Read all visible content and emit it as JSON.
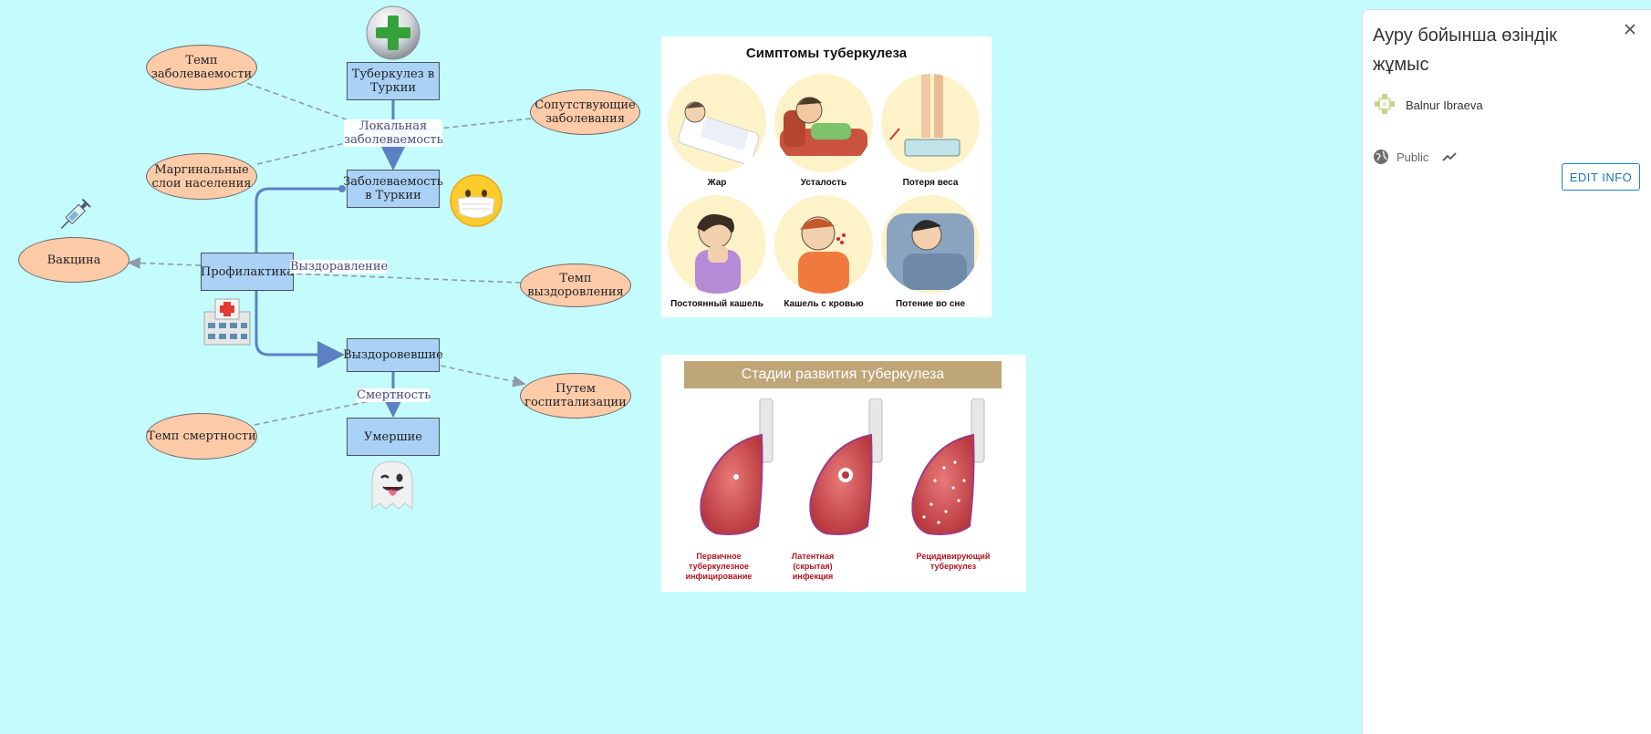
{
  "diagram": {
    "stocks": {
      "tb_turkey": "Туберкулез в Туркии",
      "incidence": "Заболеваемость в Туркии",
      "prevention": "Профилактика",
      "recovered": "Выздоровевшие",
      "dead": "Умершие"
    },
    "auxiliaries": {
      "incidence_rate": "Темп заболеваемости",
      "comorbidities": "Сопутствующие заболевания",
      "marginal": "Маргинальные слои населения",
      "vaccine": "Вакцина",
      "recovery_rate": "Темп выздоровления",
      "hospitalization": "Путем госпитализации",
      "mortality_rate": "Темп смертности"
    },
    "flows": {
      "local_incidence": "Локальная заболеваемость",
      "recovery": "Выздоравление",
      "mortality": "Смертность"
    },
    "icons": [
      "green-plus-icon",
      "mask-face-icon",
      "syringe-icon",
      "hospital-icon",
      "ghost-icon"
    ]
  },
  "images": {
    "symptoms": {
      "title": "Симптомы туберкулеза",
      "items": [
        "Жар",
        "Усталость",
        "Потеря веса",
        "Постоянный кашель",
        "Кашель с кровью",
        "Потение во сне"
      ]
    },
    "stages": {
      "title": "Стадии развития туберкулеза",
      "items": [
        "Первичное туберкулезное инфицирование",
        "Латентная (скрытая) инфекция",
        "Рецидивирующий туберкулез"
      ]
    }
  },
  "panel": {
    "title": "Ауру бойынша өзіндік жұмыс",
    "author": "Balnur Ibraeva",
    "visibility": "Public",
    "edit_label": "EDIT INFO",
    "colors": {
      "accent": "#1a84c7",
      "stock": "#a9d2f6",
      "aux": "#fecba9",
      "canvas": "#c4fbfd"
    }
  }
}
